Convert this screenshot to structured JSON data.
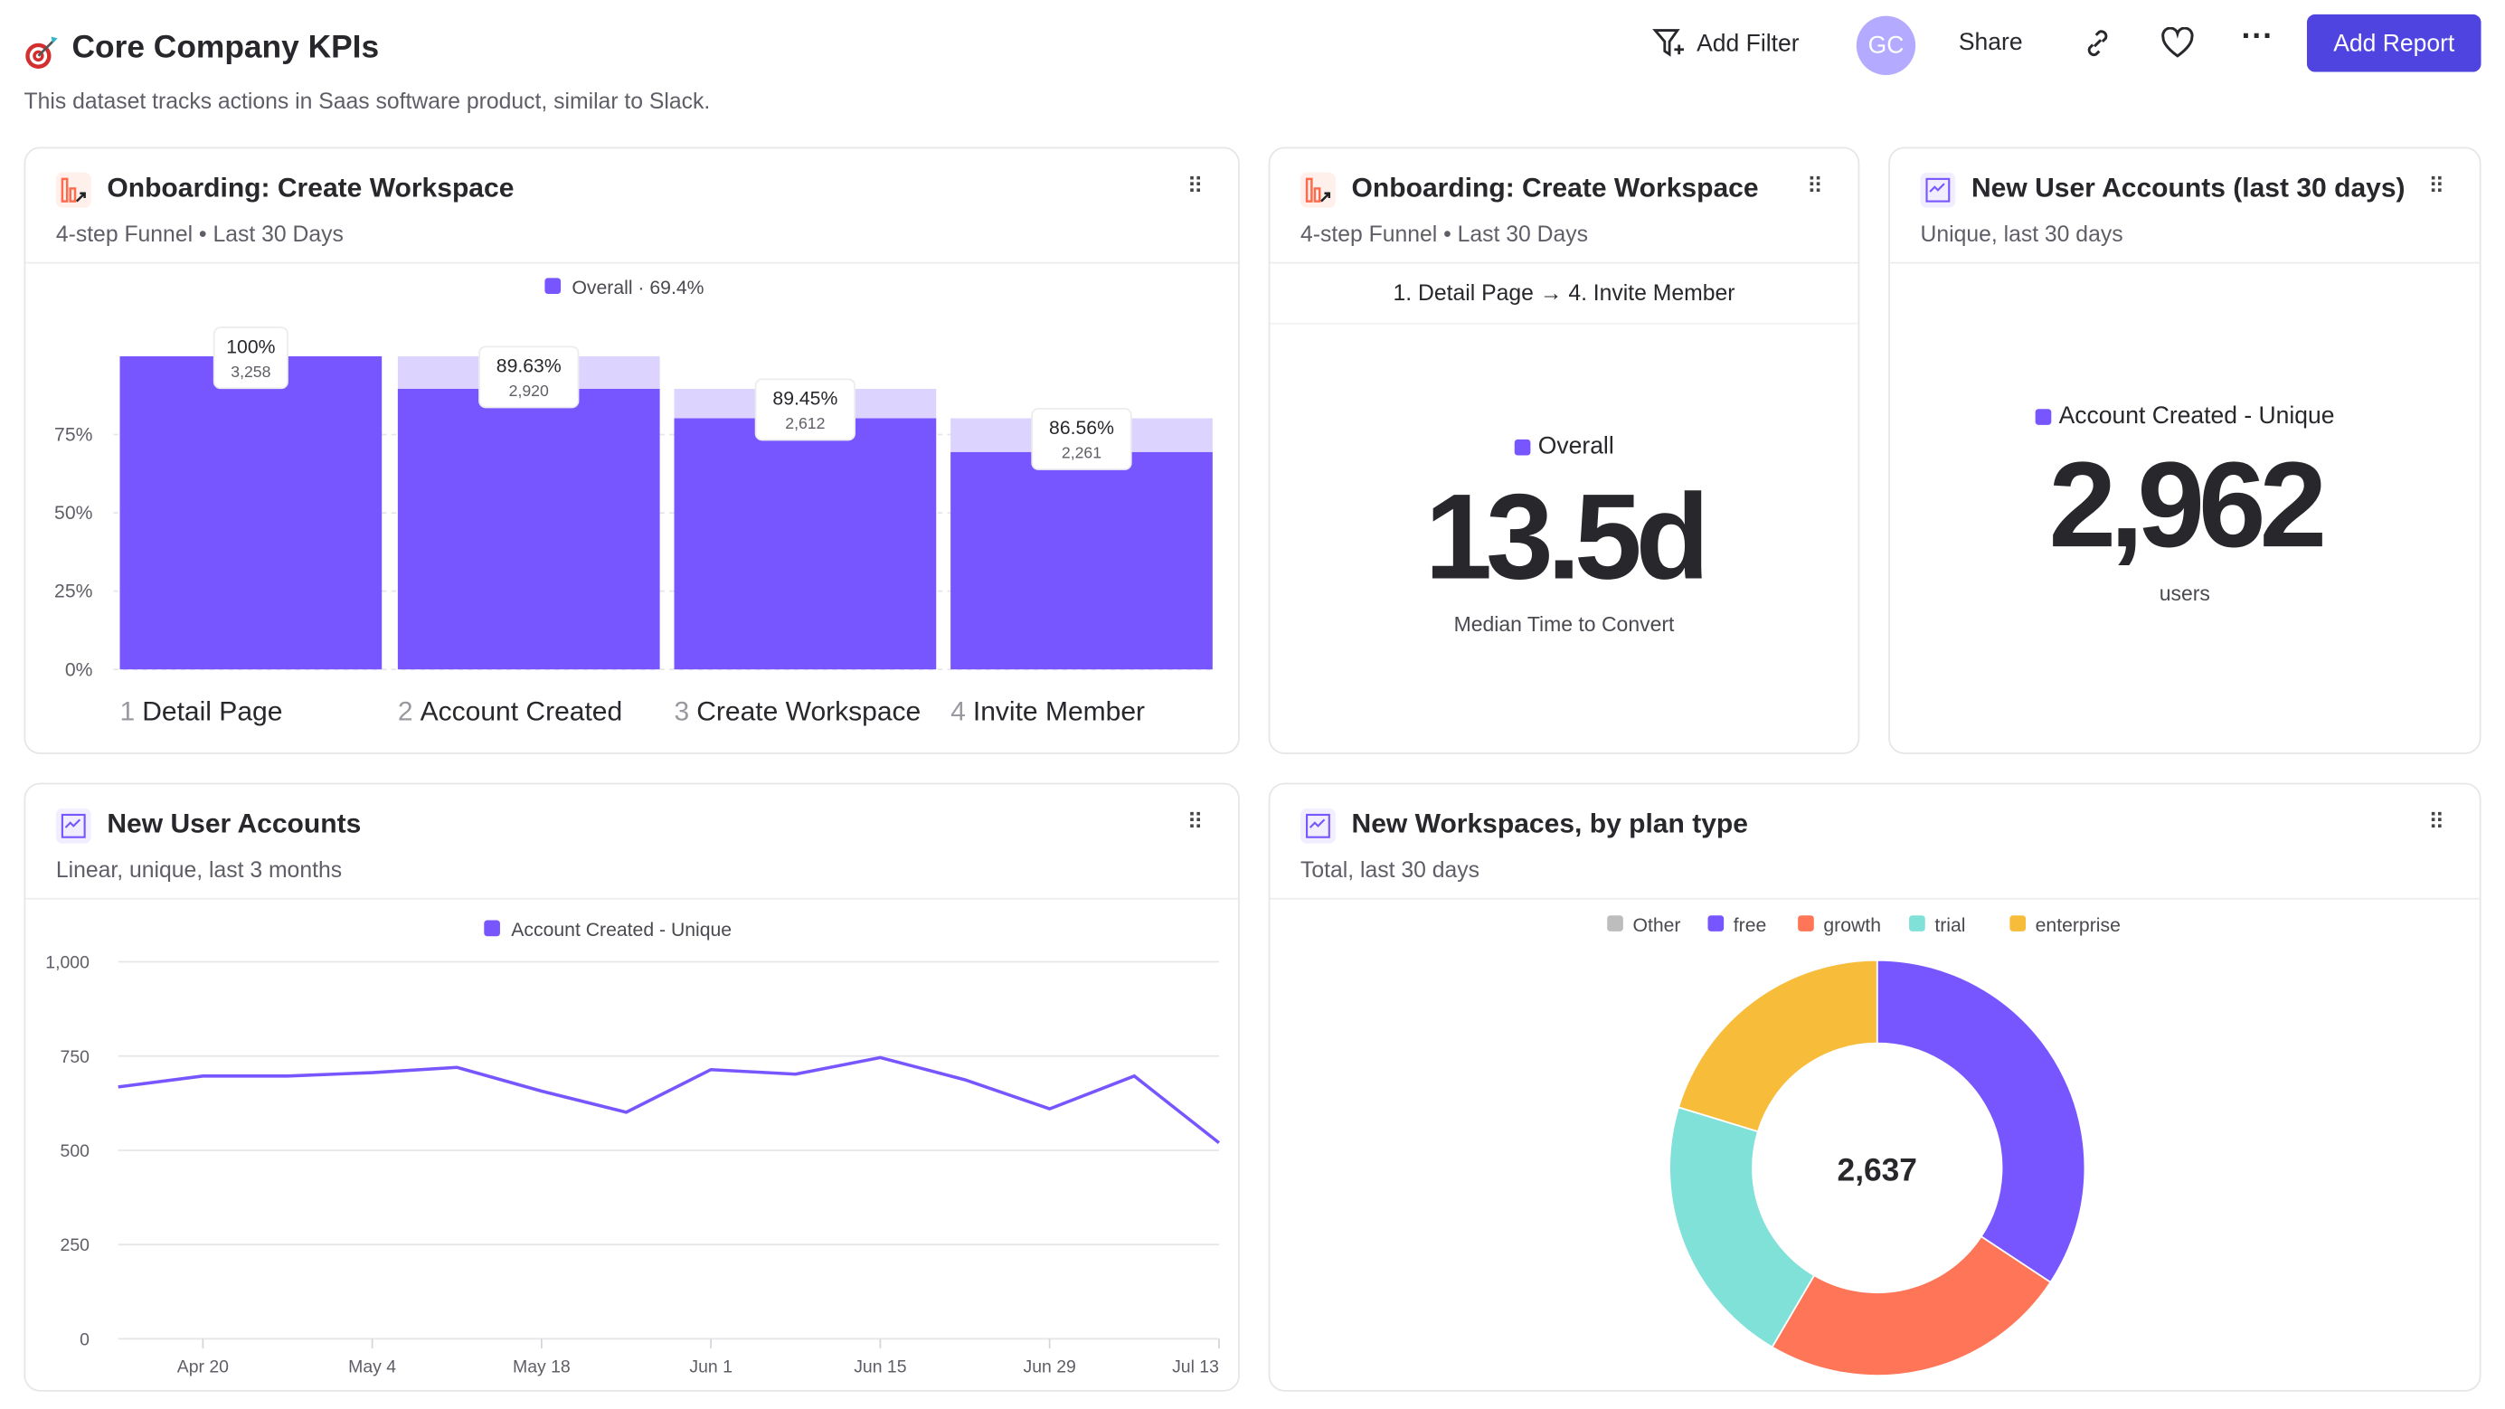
{
  "header": {
    "title": "Core Company KPIs",
    "description": "This dataset tracks actions in Saas software product, similar to Slack.",
    "add_filter": "Add Filter",
    "avatar_initials": "GC",
    "share": "Share",
    "add_report": "Add Report",
    "accent": "#4f44e0",
    "avatar_color": "#b4aaff"
  },
  "cards": {
    "funnel": {
      "title": "Onboarding: Create Workspace",
      "subtitle": "4-step Funnel • Last 30 Days",
      "legend": "Overall · 69.4%"
    },
    "ttc": {
      "title": "Onboarding: Create Workspace",
      "subtitle": "4-step Funnel • Last 30 Days",
      "steps": "1. Detail Page → 4. Invite Member",
      "legend": "Overall",
      "value": "13.5d",
      "caption": "Median Time to Convert"
    },
    "metric": {
      "title": "New User Accounts (last 30 days)",
      "subtitle": "Unique, last 30 days",
      "legend": "Account Created - Unique",
      "value": "2,962",
      "unit": "users"
    },
    "line": {
      "title": "New User Accounts",
      "subtitle": "Linear, unique, last 3 months"
    },
    "donut": {
      "title": "New Workspaces, by plan type",
      "subtitle": "Total, last 30 days"
    }
  },
  "chart_data": [
    {
      "type": "bar",
      "name": "funnel",
      "legend": "Overall · 69.4%",
      "color": "#7856ff",
      "categories": [
        "Detail Page",
        "Account Created",
        "Create Workspace",
        "Invite Member"
      ],
      "step_numbers": [
        "1",
        "2",
        "3",
        "4"
      ],
      "values_pct": [
        100,
        89.6,
        80.2,
        69.4
      ],
      "conversion_labels": [
        "100%",
        "89.63%",
        "89.45%",
        "86.56%"
      ],
      "counts": [
        "3,258",
        "2,920",
        "2,612",
        "2,261"
      ],
      "yticks": [
        "0%",
        "25%",
        "50%",
        "75%"
      ],
      "ylim": [
        0,
        100
      ]
    },
    {
      "type": "line",
      "series": [
        {
          "name": "Account Created - Unique",
          "color": "#7856ff",
          "values": [
            668,
            697,
            697,
            706,
            720,
            657,
            601,
            714,
            702,
            746,
            687,
            610,
            697,
            520
          ]
        }
      ],
      "x": [
        "Apr 13",
        "Apr 20",
        "Apr 27",
        "May 4",
        "May 11",
        "May 18",
        "May 25",
        "Jun 1",
        "Jun 8",
        "Jun 15",
        "Jun 22",
        "Jun 29",
        "Jul 6",
        "Jul 13"
      ],
      "xticks": [
        "Apr 20",
        "May 4",
        "May 18",
        "Jun 1",
        "Jun 15",
        "Jun 29",
        "Jul 13"
      ],
      "yticks": [
        "0",
        "250",
        "500",
        "750",
        "1,000"
      ],
      "ylim": [
        0,
        1000
      ],
      "grid": true,
      "legend": "top"
    },
    {
      "type": "pie",
      "total": "2,637",
      "slices": [
        {
          "name": "Other",
          "value": 0,
          "color": "#bdbdbd"
        },
        {
          "name": "free",
          "value": 904,
          "color": "#7856ff"
        },
        {
          "name": "growth",
          "value": 637,
          "color": "#ff7557"
        },
        {
          "name": "trial",
          "value": 561,
          "color": "#80e1d9"
        },
        {
          "name": "enterprise",
          "value": 535,
          "color": "#f8bc3b"
        }
      ],
      "legend": "top"
    }
  ]
}
